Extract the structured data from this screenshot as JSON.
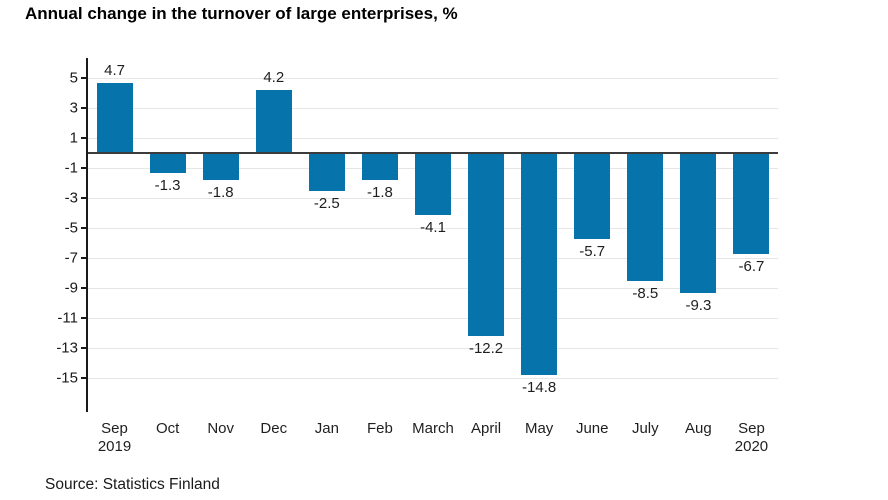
{
  "title": "Annual change in the turnover of large enterprises, %",
  "source": "Source: Statistics Finland",
  "colors": {
    "bar": "#0673ab",
    "gridline": "#e6e6e6",
    "zero_line": "#3c3c3c",
    "axis": "#1a1a1a"
  },
  "chart_data": {
    "type": "bar",
    "title": "Annual change in the turnover of large enterprises, %",
    "categories": [
      "Sep\n2019",
      "Oct",
      "Nov",
      "Dec",
      "Jan",
      "Feb",
      "March",
      "April",
      "May",
      "June",
      "July",
      "Aug",
      "Sep\n2020"
    ],
    "values": [
      4.7,
      -1.3,
      -1.8,
      4.2,
      -2.5,
      -1.8,
      -4.1,
      -12.2,
      -14.8,
      -5.7,
      -8.5,
      -9.3,
      -6.7
    ],
    "data_labels": [
      "4.7",
      "-1.3",
      "-1.8",
      "4.2",
      "-2.5",
      "-1.8",
      "-4.1",
      "-12.2",
      "-14.8",
      "-5.7",
      "-8.5",
      "-9.3",
      "-6.7"
    ],
    "yticks": [
      5,
      3,
      1,
      -1,
      -3,
      -5,
      -7,
      -9,
      -11,
      -13,
      -15
    ],
    "ylim": [
      -17.3,
      6.2
    ],
    "xlabel": "",
    "ylabel": "",
    "grid": true,
    "legend_position": "none",
    "source": "Source: Statistics Finland"
  }
}
